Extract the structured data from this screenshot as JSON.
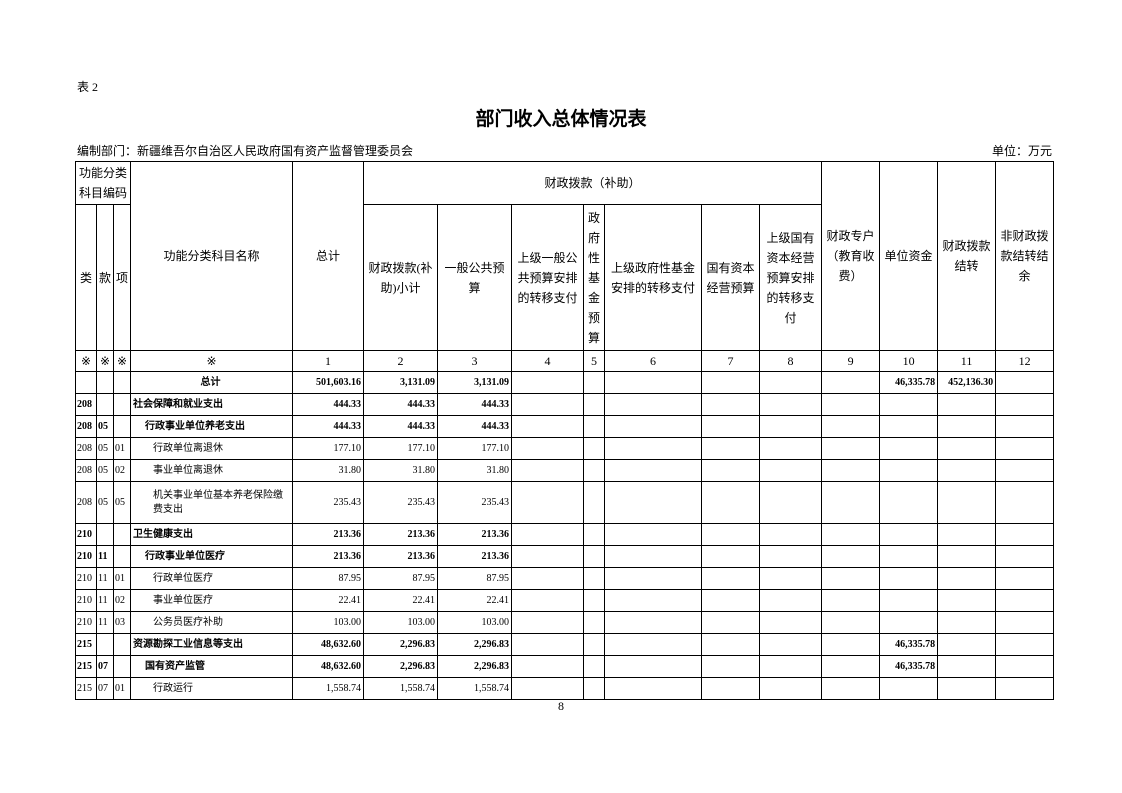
{
  "header": {
    "table_no": "表 2",
    "title": "部门收入总体情况表",
    "department": "编制部门：新疆维吾尔自治区人民政府国有资产监督管理委员会",
    "unit": "单位：万元"
  },
  "table": {
    "columns": {
      "code_group": "功能分类科目编码",
      "lei": "类",
      "kuan": "款",
      "xiang": "项",
      "name": "功能分类科目名称",
      "total": "总计",
      "fiscal_group": "财政拨款（补助）",
      "fiscal": [
        "财政拨款(补助)小计",
        "一般公共预算",
        "上级一般公共预算安排的转移支付",
        "政府性基金预算",
        "上级政府性基金安排的转移支付",
        "国有资本经营预算",
        "上级国有资本经营预算安排的转移支付"
      ],
      "others": [
        "财政专户（教育收费）",
        "单位资金",
        "财政拨款结转",
        "非财政拨款结转结余"
      ]
    },
    "number_row": [
      "※",
      "※",
      "※",
      "※",
      "1",
      "2",
      "3",
      "4",
      "5",
      "6",
      "7",
      "8",
      "9",
      "10",
      "11",
      "12"
    ],
    "rows": [
      {
        "codes": [],
        "name": "总计",
        "amounts": [
          "501,603.16",
          "3,131.09",
          "3,131.09",
          null,
          null,
          null,
          null,
          null,
          null,
          "46,335.78",
          "452,136.30",
          null
        ]
      },
      {
        "codes": [
          "208"
        ],
        "name": "社会保障和就业支出",
        "amounts": [
          "444.33",
          "444.33",
          "444.33",
          null,
          null,
          null,
          null,
          null,
          null,
          null,
          null,
          null
        ]
      },
      {
        "codes": [
          "208",
          "05"
        ],
        "name": "行政事业单位养老支出",
        "amounts": [
          "444.33",
          "444.33",
          "444.33",
          null,
          null,
          null,
          null,
          null,
          null,
          null,
          null,
          null
        ]
      },
      {
        "codes": [
          "208",
          "05",
          "01"
        ],
        "name": "行政单位离退休",
        "amounts": [
          "177.10",
          "177.10",
          "177.10",
          null,
          null,
          null,
          null,
          null,
          null,
          null,
          null,
          null
        ]
      },
      {
        "codes": [
          "208",
          "05",
          "02"
        ],
        "name": "事业单位离退休",
        "amounts": [
          "31.80",
          "31.80",
          "31.80",
          null,
          null,
          null,
          null,
          null,
          null,
          null,
          null,
          null
        ]
      },
      {
        "codes": [
          "208",
          "05",
          "05"
        ],
        "name": "机关事业单位基本养老保险缴费支出",
        "amounts": [
          "235.43",
          "235.43",
          "235.43",
          null,
          null,
          null,
          null,
          null,
          null,
          null,
          null,
          null
        ]
      },
      {
        "codes": [
          "210"
        ],
        "name": "卫生健康支出",
        "amounts": [
          "213.36",
          "213.36",
          "213.36",
          null,
          null,
          null,
          null,
          null,
          null,
          null,
          null,
          null
        ]
      },
      {
        "codes": [
          "210",
          "11"
        ],
        "name": "行政事业单位医疗",
        "amounts": [
          "213.36",
          "213.36",
          "213.36",
          null,
          null,
          null,
          null,
          null,
          null,
          null,
          null,
          null
        ]
      },
      {
        "codes": [
          "210",
          "11",
          "01"
        ],
        "name": "行政单位医疗",
        "amounts": [
          "87.95",
          "87.95",
          "87.95",
          null,
          null,
          null,
          null,
          null,
          null,
          null,
          null,
          null
        ]
      },
      {
        "codes": [
          "210",
          "11",
          "02"
        ],
        "name": "事业单位医疗",
        "amounts": [
          "22.41",
          "22.41",
          "22.41",
          null,
          null,
          null,
          null,
          null,
          null,
          null,
          null,
          null
        ]
      },
      {
        "codes": [
          "210",
          "11",
          "03"
        ],
        "name": "公务员医疗补助",
        "amounts": [
          "103.00",
          "103.00",
          "103.00",
          null,
          null,
          null,
          null,
          null,
          null,
          null,
          null,
          null
        ]
      },
      {
        "codes": [
          "215"
        ],
        "name": "资源勘探工业信息等支出",
        "amounts": [
          "48,632.60",
          "2,296.83",
          "2,296.83",
          null,
          null,
          null,
          null,
          null,
          null,
          "46,335.78",
          null,
          null
        ]
      },
      {
        "codes": [
          "215",
          "07"
        ],
        "name": "国有资产监管",
        "amounts": [
          "48,632.60",
          "2,296.83",
          "2,296.83",
          null,
          null,
          null,
          null,
          null,
          null,
          "46,335.78",
          null,
          null
        ]
      },
      {
        "codes": [
          "215",
          "07",
          "01"
        ],
        "name": "行政运行",
        "amounts": [
          "1,558.74",
          "1,558.74",
          "1,558.74",
          null,
          null,
          null,
          null,
          null,
          null,
          null,
          null,
          null
        ]
      }
    ]
  },
  "footer": {
    "page_number": "8"
  }
}
